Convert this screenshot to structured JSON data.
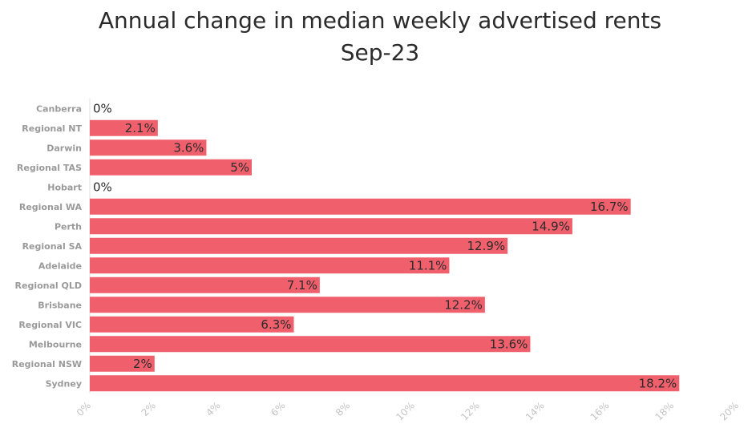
{
  "chart_data": {
    "type": "bar",
    "orientation": "horizontal",
    "title": "Annual change in median weekly advertised rents",
    "subtitle": "Sep-23",
    "categories": [
      "Canberra",
      "Regional NT",
      "Darwin",
      "Regional TAS",
      "Hobart",
      "Regional WA",
      "Perth",
      "Regional SA",
      "Adelaide",
      "Regional QLD",
      "Brisbane",
      "Regional VIC",
      "Melbourne",
      "Regional NSW",
      "Sydney"
    ],
    "values": [
      0,
      2.1,
      3.6,
      5,
      0,
      16.7,
      14.9,
      12.9,
      11.1,
      7.1,
      12.2,
      6.3,
      13.6,
      2,
      18.2
    ],
    "data_labels": [
      "0%",
      "2.1%",
      "3.6%",
      "5%",
      "0%",
      "16.7%",
      "14.9%",
      "12.9%",
      "11.1%",
      "7.1%",
      "12.2%",
      "6.3%",
      "13.6%",
      "2%",
      "18.2%"
    ],
    "x_ticks": [
      0,
      2,
      4,
      6,
      8,
      10,
      12,
      14,
      16,
      18,
      20
    ],
    "x_tick_labels": [
      "0%",
      "2%",
      "4%",
      "6%",
      "8%",
      "10%",
      "12%",
      "14%",
      "16%",
      "18%",
      "20%"
    ],
    "xlim": [
      0,
      20
    ],
    "xlabel": "",
    "ylabel": "",
    "grid": false,
    "legend": "none",
    "colors": {
      "bar": "#f0606c",
      "title": "#2b2b2b",
      "category_label": "#9a9a9a",
      "tick_label": "#c4c4c4",
      "data_label": "#2b2b2b",
      "axis": "#e0e0e0"
    }
  }
}
